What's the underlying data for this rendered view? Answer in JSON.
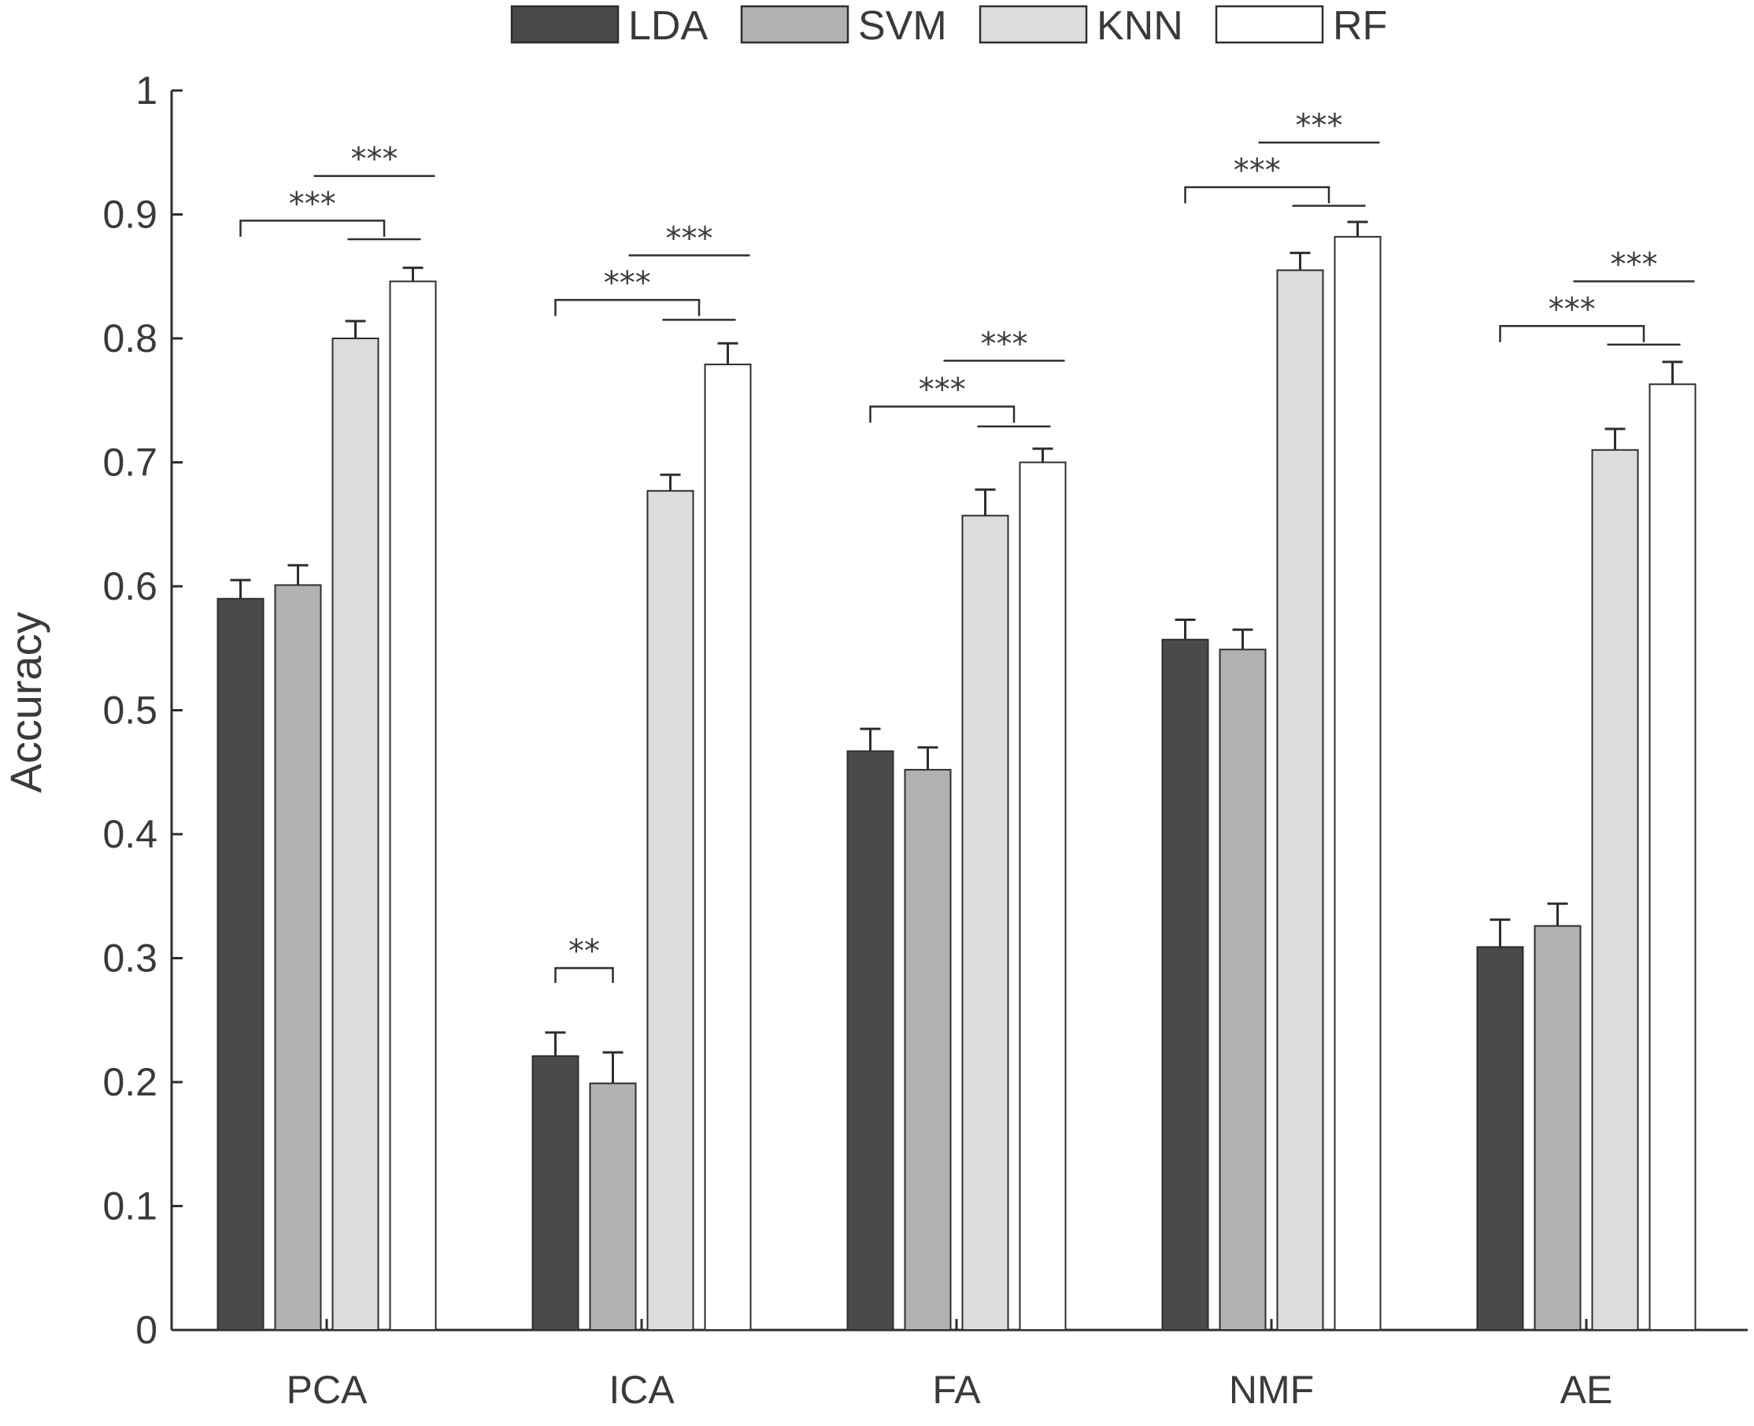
{
  "chart_data": {
    "type": "bar",
    "title": "",
    "xlabel": "",
    "ylabel": "Accuracy",
    "ylim": [
      0,
      1
    ],
    "yticks": [
      "0",
      "0.1",
      "0.2",
      "0.3",
      "0.4",
      "0.5",
      "0.6",
      "0.7",
      "0.8",
      "0.9",
      "1"
    ],
    "categories": [
      "PCA",
      "ICA",
      "FA",
      "NMF",
      "AE"
    ],
    "legend_position": "top",
    "series": [
      {
        "name": "LDA",
        "color": "#4a4a4a",
        "values": [
          0.59,
          0.221,
          0.467,
          0.557,
          0.309
        ],
        "errors": [
          0.015,
          0.019,
          0.018,
          0.016,
          0.022
        ]
      },
      {
        "name": "SVM",
        "color": "#b1b1b1",
        "values": [
          0.601,
          0.199,
          0.452,
          0.549,
          0.326
        ],
        "errors": [
          0.016,
          0.025,
          0.018,
          0.016,
          0.018
        ]
      },
      {
        "name": "KNN",
        "color": "#dcdcdc",
        "values": [
          0.8,
          0.677,
          0.657,
          0.855,
          0.71
        ],
        "errors": [
          0.014,
          0.013,
          0.021,
          0.014,
          0.017
        ]
      },
      {
        "name": "RF",
        "color": "#ffffff",
        "values": [
          0.846,
          0.779,
          0.7,
          0.882,
          0.763
        ],
        "errors": [
          0.011,
          0.017,
          0.011,
          0.012,
          0.018
        ]
      }
    ],
    "significance": [
      {
        "category": "PCA",
        "type": "bracket",
        "label": "***",
        "level": 0.895,
        "tick_bottom": 0.882,
        "from": "LDA",
        "sub_from": "KNN",
        "sub_to": "RF",
        "sub_level": 0.88
      },
      {
        "category": "PCA",
        "type": "line",
        "label": "***",
        "level": 0.931,
        "from": "SVM",
        "to": "RF"
      },
      {
        "category": "ICA",
        "type": "bracket",
        "label": "***",
        "level": 0.831,
        "tick_bottom": 0.818,
        "from": "LDA",
        "sub_from": "KNN",
        "sub_to": "RF",
        "sub_level": 0.815
      },
      {
        "category": "ICA",
        "type": "line",
        "label": "***",
        "level": 0.867,
        "from": "SVM",
        "to": "RF"
      },
      {
        "category": "ICA",
        "type": "bracket2",
        "label": "**",
        "level": 0.292,
        "tick_bottom": 0.28,
        "from": "LDA",
        "to": "SVM"
      },
      {
        "category": "FA",
        "type": "bracket",
        "label": "***",
        "level": 0.745,
        "tick_bottom": 0.732,
        "from": "LDA",
        "sub_from": "KNN",
        "sub_to": "RF",
        "sub_level": 0.729
      },
      {
        "category": "FA",
        "type": "line",
        "label": "***",
        "level": 0.782,
        "from": "SVM",
        "to": "RF"
      },
      {
        "category": "NMF",
        "type": "bracket",
        "label": "***",
        "level": 0.922,
        "tick_bottom": 0.909,
        "from": "LDA",
        "sub_from": "KNN",
        "sub_to": "RF",
        "sub_level": 0.907
      },
      {
        "category": "NMF",
        "type": "line",
        "label": "***",
        "level": 0.958,
        "from": "SVM",
        "to": "RF"
      },
      {
        "category": "AE",
        "type": "bracket",
        "label": "***",
        "level": 0.81,
        "tick_bottom": 0.797,
        "from": "LDA",
        "sub_from": "KNN",
        "sub_to": "RF",
        "sub_level": 0.795
      },
      {
        "category": "AE",
        "type": "line",
        "label": "***",
        "level": 0.846,
        "from": "SVM",
        "to": "RF"
      }
    ]
  }
}
